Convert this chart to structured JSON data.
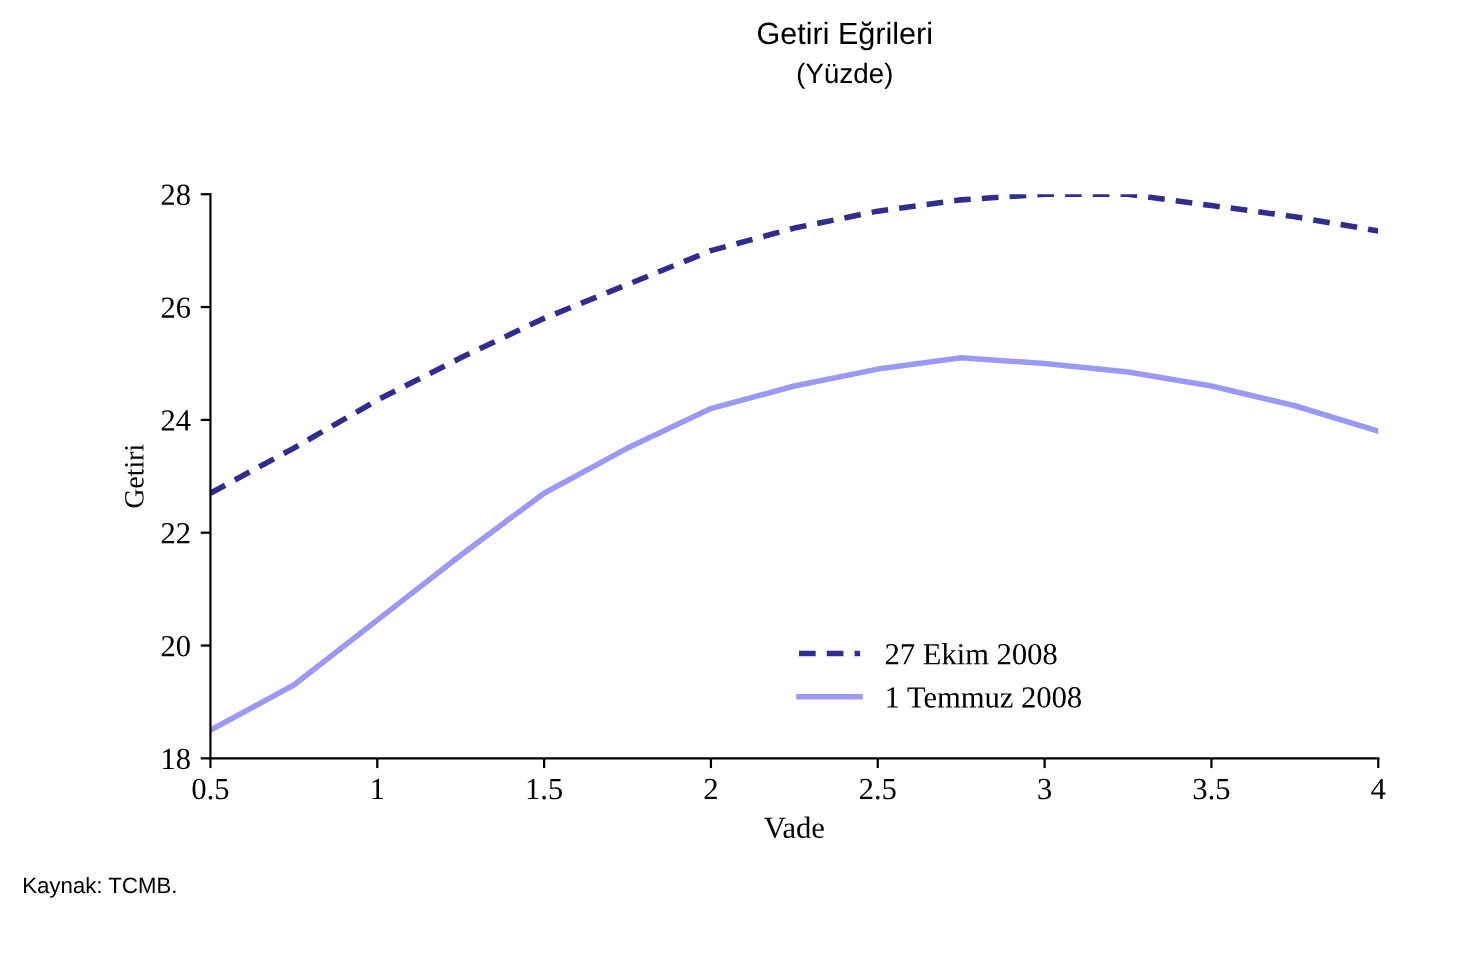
{
  "chart_data": {
    "type": "line",
    "title": "Getiri Eğrileri",
    "subtitle": "(Yüzde)",
    "xlabel": "Vade",
    "ylabel": "Getiri",
    "annotations": [
      "Kaynak: TCMB."
    ],
    "x": [
      0.5,
      0.75,
      1,
      1.25,
      1.5,
      1.75,
      2,
      2.25,
      2.5,
      2.75,
      3,
      3.25,
      3.5,
      3.75,
      4
    ],
    "series": [
      {
        "name": "27 Ekim 2008",
        "color": "#2e2e8f",
        "line_style": "dashed",
        "values": [
          22.7,
          23.5,
          24.35,
          25.1,
          25.8,
          26.4,
          27.0,
          27.4,
          27.7,
          27.9,
          28.0,
          28.0,
          27.8,
          27.6,
          27.35
        ]
      },
      {
        "name": "1 Temmuz 2008",
        "color": "#9a9af5",
        "line_style": "solid",
        "values": [
          18.5,
          19.3,
          20.45,
          21.6,
          22.7,
          23.5,
          24.2,
          24.6,
          24.9,
          25.1,
          25.0,
          24.85,
          24.6,
          24.25,
          23.8
        ]
      }
    ],
    "xlim": [
      0.5,
      4
    ],
    "xticks": [
      0.5,
      1,
      1.5,
      2,
      2.5,
      3,
      3.5,
      4
    ],
    "ylim": [
      18,
      28
    ],
    "yticks": [
      18,
      20,
      22,
      24,
      26,
      28
    ],
    "grid": false,
    "legend": "bottom right",
    "marker": "none"
  }
}
